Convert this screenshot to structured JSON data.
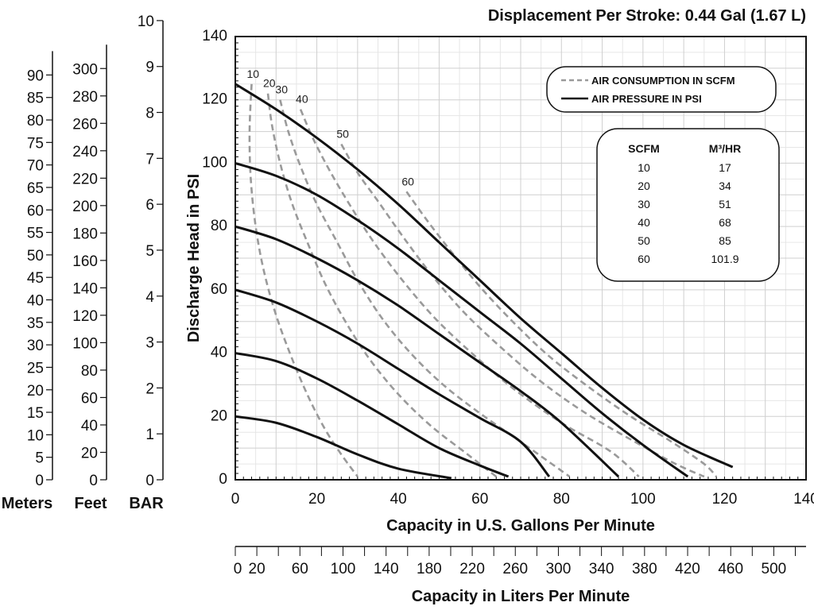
{
  "chart_data": {
    "type": "line",
    "title": "Displacement Per Stroke: 0.44 Gal (1.67 L)",
    "xlabel": "Capacity in U.S. Gallons Per Minute",
    "ylabel": "Discharge Head in PSI",
    "xlim": [
      0,
      140
    ],
    "ylim": [
      0,
      140
    ],
    "x_ticks": [
      "0",
      "20",
      "40",
      "60",
      "80",
      "100",
      "120",
      "140"
    ],
    "y_ticks": [
      "0",
      "20",
      "40",
      "60",
      "80",
      "100",
      "120",
      "140"
    ],
    "grid": true,
    "secondary_x_axis": {
      "label": "Capacity in Liters Per Minute",
      "ticks": [
        "0",
        "20",
        "60",
        "100",
        "140",
        "180",
        "220",
        "260",
        "300",
        "340",
        "380",
        "420",
        "460",
        "500"
      ]
    },
    "side_scales": [
      {
        "label": "BAR",
        "max": 10,
        "ticks": [
          "0",
          "1",
          "2",
          "3",
          "4",
          "5",
          "6",
          "7",
          "8",
          "9",
          "10"
        ]
      },
      {
        "label": "Feet",
        "max": 300,
        "ticks": [
          "0",
          "20",
          "40",
          "60",
          "80",
          "100",
          "120",
          "140",
          "160",
          "180",
          "200",
          "220",
          "240",
          "260",
          "280",
          "300"
        ]
      },
      {
        "label": "Meters",
        "max": 90,
        "ticks": [
          "0",
          "5",
          "10",
          "15",
          "20",
          "25",
          "30",
          "35",
          "40",
          "45",
          "50",
          "55",
          "60",
          "65",
          "70",
          "75",
          "80",
          "85",
          "90"
        ]
      }
    ],
    "legend": {
      "position": "top-right",
      "entries": [
        {
          "label": "AIR CONSUMPTION IN SCFM",
          "style": "dashed",
          "color": "#9a9a9a"
        },
        {
          "label": "AIR PRESSURE IN PSI",
          "style": "solid",
          "color": "#111111"
        }
      ]
    },
    "conversion_table": {
      "headers": [
        "SCFM",
        "M³/HR"
      ],
      "rows": [
        [
          "10",
          "17"
        ],
        [
          "20",
          "34"
        ],
        [
          "30",
          "51"
        ],
        [
          "40",
          "68"
        ],
        [
          "50",
          "85"
        ],
        [
          "60",
          "101.9"
        ]
      ]
    },
    "pressure_curves": [
      {
        "points": [
          [
            0,
            20
          ],
          [
            10,
            18
          ],
          [
            20,
            13.5
          ],
          [
            30,
            8
          ],
          [
            40,
            3.5
          ],
          [
            53,
            0.5
          ]
        ]
      },
      {
        "points": [
          [
            0,
            40
          ],
          [
            10,
            37.5
          ],
          [
            20,
            32
          ],
          [
            30,
            25
          ],
          [
            40,
            17.5
          ],
          [
            50,
            10
          ],
          [
            60,
            4.5
          ],
          [
            67,
            1
          ]
        ]
      },
      {
        "points": [
          [
            0,
            60
          ],
          [
            10,
            56
          ],
          [
            20,
            50
          ],
          [
            30,
            43
          ],
          [
            40,
            35
          ],
          [
            50,
            27
          ],
          [
            60,
            19.5
          ],
          [
            70,
            12
          ],
          [
            77,
            1
          ]
        ]
      },
      {
        "points": [
          [
            0,
            80
          ],
          [
            10,
            76
          ],
          [
            20,
            70
          ],
          [
            30,
            63
          ],
          [
            40,
            55
          ],
          [
            50,
            46
          ],
          [
            60,
            37
          ],
          [
            70,
            28
          ],
          [
            80,
            18
          ],
          [
            94,
            1
          ]
        ]
      },
      {
        "points": [
          [
            0,
            100
          ],
          [
            10,
            96
          ],
          [
            20,
            90
          ],
          [
            30,
            82
          ],
          [
            40,
            73
          ],
          [
            50,
            63
          ],
          [
            60,
            53
          ],
          [
            70,
            43
          ],
          [
            80,
            32
          ],
          [
            90,
            21
          ],
          [
            100,
            11
          ],
          [
            111,
            1
          ]
        ]
      },
      {
        "points": [
          [
            0,
            125
          ],
          [
            10,
            117
          ],
          [
            20,
            108
          ],
          [
            30,
            98
          ],
          [
            40,
            87
          ],
          [
            50,
            75
          ],
          [
            60,
            63
          ],
          [
            70,
            51
          ],
          [
            80,
            40
          ],
          [
            90,
            29
          ],
          [
            100,
            19
          ],
          [
            110,
            11
          ],
          [
            122,
            4
          ]
        ]
      }
    ],
    "air_curves": [
      {
        "label": "10",
        "points": [
          [
            4,
            125
          ],
          [
            3.5,
            110
          ],
          [
            3.8,
            95
          ],
          [
            5,
            80
          ],
          [
            7,
            66
          ],
          [
            10,
            52
          ],
          [
            14,
            38
          ],
          [
            18,
            26
          ],
          [
            22,
            16
          ],
          [
            26,
            8
          ],
          [
            30,
            1
          ]
        ]
      },
      {
        "label": "20",
        "points": [
          [
            8,
            122
          ],
          [
            9,
            112
          ],
          [
            11,
            100
          ],
          [
            14,
            87
          ],
          [
            18,
            74
          ],
          [
            22,
            62
          ],
          [
            27,
            50
          ],
          [
            33,
            38
          ],
          [
            40,
            27
          ],
          [
            48,
            17
          ],
          [
            57,
            8
          ],
          [
            64,
            1
          ]
        ]
      },
      {
        "label": "30",
        "points": [
          [
            11,
            120
          ],
          [
            13,
            110
          ],
          [
            16,
            99
          ],
          [
            20,
            87
          ],
          [
            25,
            75
          ],
          [
            30,
            63
          ],
          [
            36,
            51
          ],
          [
            43,
            40
          ],
          [
            51,
            30
          ],
          [
            60,
            21
          ],
          [
            70,
            12
          ],
          [
            82,
            1
          ]
        ]
      },
      {
        "label": "40",
        "points": [
          [
            16,
            117
          ],
          [
            19,
            108
          ],
          [
            23,
            98
          ],
          [
            28,
            87
          ],
          [
            34,
            75
          ],
          [
            41,
            63
          ],
          [
            49,
            51
          ],
          [
            58,
            40
          ],
          [
            68,
            29
          ],
          [
            80,
            18
          ],
          [
            92,
            9
          ],
          [
            99,
            1
          ]
        ]
      },
      {
        "label": "50",
        "points": [
          [
            26,
            106
          ],
          [
            30,
            97
          ],
          [
            35,
            88
          ],
          [
            41,
            77
          ],
          [
            48,
            65
          ],
          [
            56,
            53
          ],
          [
            65,
            42
          ],
          [
            75,
            31
          ],
          [
            86,
            21
          ],
          [
            98,
            12
          ],
          [
            108,
            5
          ],
          [
            115,
            1
          ]
        ]
      },
      {
        "label": "60",
        "points": [
          [
            42,
            91
          ],
          [
            47,
            82
          ],
          [
            53,
            72
          ],
          [
            60,
            61
          ],
          [
            68,
            50
          ],
          [
            77,
            39
          ],
          [
            87,
            29
          ],
          [
            97,
            20
          ],
          [
            107,
            12
          ],
          [
            115,
            5
          ],
          [
            118,
            1
          ]
        ]
      }
    ]
  }
}
